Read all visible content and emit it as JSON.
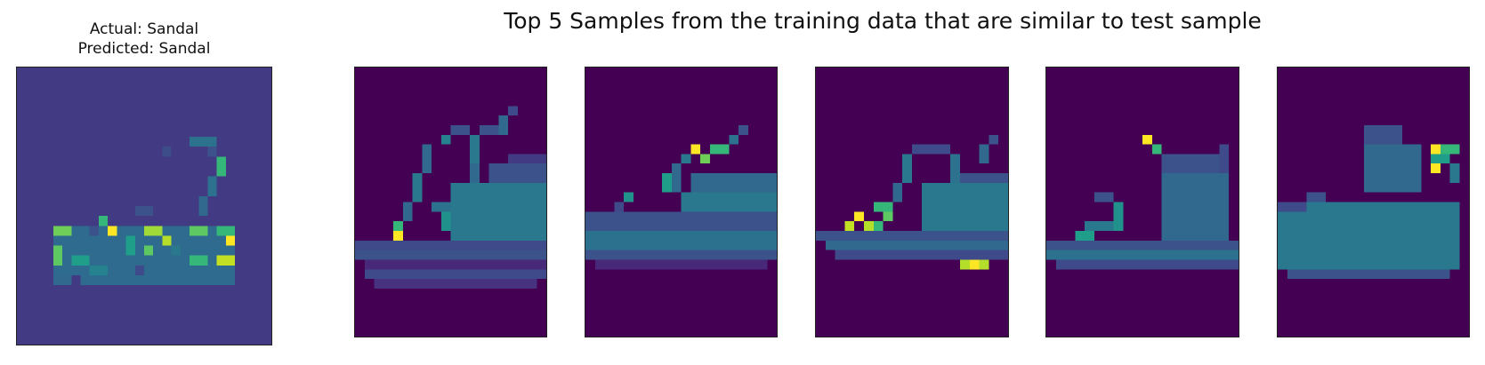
{
  "test_sample": {
    "actual_text": "Actual: Sandal",
    "predicted_text": "Predicted: Sandal",
    "image": "sandal-test-image"
  },
  "figure_title": "Top 5 Samples from the training data that are similar to test sample",
  "colormap": "viridis",
  "colors": {
    "panel_background": "#440154",
    "test_background": "#433a84"
  },
  "similar_samples": [
    {
      "image": "sandal-similar-1"
    },
    {
      "image": "sandal-similar-2"
    },
    {
      "image": "sandal-similar-3"
    },
    {
      "image": "sandal-similar-4"
    },
    {
      "image": "sandal-similar-5"
    }
  ]
}
